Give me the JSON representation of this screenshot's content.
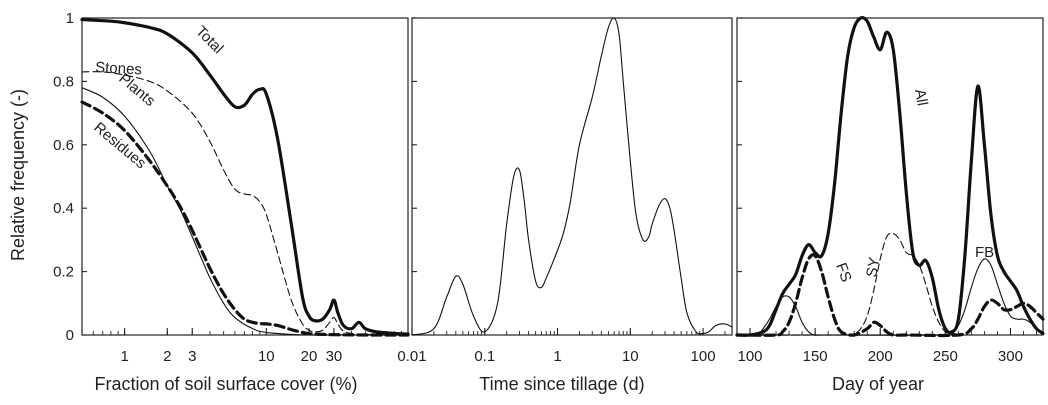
{
  "chart_data": [
    {
      "type": "line",
      "xscale": "log",
      "xlim": [
        0.5,
        100
      ],
      "ylim": [
        0,
        1
      ],
      "xlabel": "Fraction of soil surface cover (%)",
      "ylabel": "Relative frequency (-)",
      "xticks": [
        1,
        2,
        3,
        10,
        20,
        30
      ],
      "xtick_labels": [
        "1",
        "2",
        "3",
        "10",
        "20",
        "30"
      ],
      "yticks": [
        0,
        0.2,
        0.4,
        0.6,
        0.8,
        1
      ],
      "ytick_labels": [
        "0",
        "0.2",
        "0.4",
        "0.6",
        "0.8",
        "1"
      ],
      "series": [
        {
          "name": "Total",
          "style": "thick-solid",
          "x": [
            0.5,
            0.8,
            1,
            1.5,
            2,
            3,
            4,
            5,
            6,
            7,
            8,
            9,
            10,
            12,
            15,
            18,
            20,
            22,
            25,
            28,
            30,
            32,
            35,
            40,
            45,
            50,
            60,
            80,
            100
          ],
          "y": [
            0.995,
            0.99,
            0.985,
            0.97,
            0.95,
            0.89,
            0.82,
            0.76,
            0.72,
            0.725,
            0.76,
            0.775,
            0.76,
            0.62,
            0.35,
            0.12,
            0.06,
            0.045,
            0.05,
            0.08,
            0.11,
            0.07,
            0.03,
            0.02,
            0.04,
            0.02,
            0.01,
            0.005,
            0.003
          ]
        },
        {
          "name": "Stones",
          "style": "thin-dashed",
          "x": [
            0.5,
            0.7,
            1,
            1.5,
            2,
            3,
            4,
            5,
            6,
            7,
            8,
            9,
            10,
            12,
            15,
            18,
            20,
            22,
            25,
            28,
            30,
            32,
            35,
            40,
            50,
            100
          ],
          "y": [
            0.83,
            0.83,
            0.82,
            0.8,
            0.77,
            0.7,
            0.61,
            0.52,
            0.46,
            0.445,
            0.44,
            0.42,
            0.38,
            0.26,
            0.11,
            0.035,
            0.015,
            0.01,
            0.015,
            0.04,
            0.055,
            0.035,
            0.012,
            0.005,
            0.002,
            0.0
          ]
        },
        {
          "name": "Plants",
          "style": "thin-solid",
          "x": [
            0.5,
            0.7,
            1,
            1.5,
            2,
            2.5,
            3,
            4,
            5,
            6,
            8,
            10,
            15,
            20,
            30,
            50,
            100
          ],
          "y": [
            0.78,
            0.75,
            0.69,
            0.58,
            0.47,
            0.39,
            0.31,
            0.18,
            0.1,
            0.055,
            0.02,
            0.008,
            0.002,
            0.0,
            0.0,
            0.0,
            0.0
          ]
        },
        {
          "name": "Residues",
          "style": "thick-dashed",
          "x": [
            0.5,
            0.7,
            1,
            1.5,
            2,
            2.5,
            3,
            4,
            5,
            6,
            7,
            8,
            9,
            10,
            12,
            15,
            18,
            20,
            22,
            25,
            30,
            50,
            100
          ],
          "y": [
            0.735,
            0.7,
            0.645,
            0.55,
            0.47,
            0.4,
            0.33,
            0.21,
            0.13,
            0.08,
            0.05,
            0.04,
            0.036,
            0.035,
            0.03,
            0.017,
            0.008,
            0.004,
            0.003,
            0.002,
            0.001,
            0.0,
            0.0
          ]
        }
      ],
      "curve_labels": [
        "Total",
        "Stones",
        "Plants",
        "Residues"
      ]
    },
    {
      "type": "line",
      "xscale": "log",
      "xlim": [
        0.01,
        250
      ],
      "ylim": [
        0,
        1
      ],
      "xlabel": "Time since tillage (d)",
      "xticks": [
        0.01,
        0.1,
        1,
        10,
        100
      ],
      "xtick_labels": [
        "0.01",
        "0.1",
        "1",
        "10",
        "100"
      ],
      "series": [
        {
          "name": "",
          "style": "thin-solid",
          "x": [
            0.01,
            0.02,
            0.03,
            0.04,
            0.05,
            0.07,
            0.1,
            0.15,
            0.2,
            0.25,
            0.3,
            0.35,
            0.4,
            0.5,
            0.6,
            0.7,
            0.9,
            1.2,
            1.5,
            2,
            3,
            4,
            5,
            6,
            7,
            8,
            10,
            12,
            15,
            18,
            20,
            25,
            30,
            35,
            40,
            50,
            60,
            80,
            100,
            120,
            150,
            200,
            250
          ],
          "y": [
            0.0,
            0.02,
            0.12,
            0.185,
            0.16,
            0.06,
            0.01,
            0.1,
            0.35,
            0.5,
            0.52,
            0.42,
            0.3,
            0.17,
            0.15,
            0.18,
            0.24,
            0.32,
            0.42,
            0.6,
            0.75,
            0.88,
            0.97,
            1.0,
            0.95,
            0.8,
            0.55,
            0.38,
            0.3,
            0.31,
            0.35,
            0.41,
            0.43,
            0.4,
            0.33,
            0.18,
            0.07,
            0.01,
            0.005,
            0.01,
            0.03,
            0.035,
            0.025
          ]
        }
      ]
    },
    {
      "type": "line",
      "xlim": [
        90,
        325
      ],
      "ylim": [
        0,
        1
      ],
      "xlabel": "Day of year",
      "xticks": [
        100,
        150,
        200,
        250,
        300
      ],
      "xtick_labels": [
        "100",
        "150",
        "200",
        "250",
        "300"
      ],
      "series": [
        {
          "name": "All",
          "style": "thick-solid",
          "x": [
            90,
            100,
            110,
            115,
            120,
            125,
            130,
            135,
            140,
            145,
            150,
            155,
            160,
            165,
            170,
            175,
            180,
            185,
            190,
            195,
            200,
            205,
            210,
            215,
            220,
            225,
            230,
            235,
            240,
            245,
            250,
            255,
            260,
            265,
            270,
            275,
            280,
            285,
            290,
            295,
            300,
            305,
            310,
            315,
            320,
            325
          ],
          "y": [
            0.0,
            0.0,
            0.01,
            0.03,
            0.08,
            0.13,
            0.16,
            0.19,
            0.25,
            0.285,
            0.26,
            0.25,
            0.32,
            0.48,
            0.7,
            0.88,
            0.97,
            1.0,
            0.99,
            0.94,
            0.9,
            0.955,
            0.9,
            0.7,
            0.45,
            0.26,
            0.22,
            0.235,
            0.18,
            0.08,
            0.02,
            0.01,
            0.05,
            0.25,
            0.55,
            0.785,
            0.6,
            0.38,
            0.25,
            0.2,
            0.17,
            0.14,
            0.09,
            0.05,
            0.02,
            0.005
          ]
        },
        {
          "name": "FS",
          "style": "thick-dashed",
          "x": [
            90,
            120,
            125,
            130,
            135,
            140,
            145,
            150,
            155,
            160,
            165,
            170,
            180,
            190,
            195,
            200,
            205,
            210,
            220,
            260,
            270,
            275,
            280,
            285,
            290,
            295,
            300,
            305,
            310,
            315,
            320,
            325
          ],
          "y": [
            0.0,
            0.0,
            0.01,
            0.04,
            0.1,
            0.18,
            0.24,
            0.25,
            0.2,
            0.12,
            0.05,
            0.01,
            0.0,
            0.02,
            0.04,
            0.03,
            0.01,
            0.0,
            0.0,
            0.0,
            0.02,
            0.05,
            0.09,
            0.11,
            0.1,
            0.08,
            0.08,
            0.09,
            0.1,
            0.09,
            0.07,
            0.05
          ]
        },
        {
          "name": "SY",
          "style": "thin-dashed",
          "x": [
            90,
            170,
            180,
            185,
            190,
            195,
            200,
            205,
            210,
            215,
            220,
            225,
            230,
            235,
            240,
            245,
            250,
            255,
            260
          ],
          "y": [
            0.0,
            0.0,
            0.005,
            0.02,
            0.06,
            0.14,
            0.24,
            0.31,
            0.32,
            0.3,
            0.26,
            0.25,
            0.22,
            0.16,
            0.09,
            0.04,
            0.01,
            0.005,
            0.0
          ]
        },
        {
          "name": "FB",
          "style": "thin-solid",
          "x": [
            90,
            105,
            110,
            115,
            120,
            125,
            130,
            135,
            140,
            145,
            150,
            160,
            250,
            255,
            260,
            265,
            270,
            275,
            280,
            285,
            290,
            295,
            300,
            305,
            310,
            315,
            320,
            325
          ],
          "y": [
            0.0,
            0.0,
            0.02,
            0.05,
            0.09,
            0.12,
            0.12,
            0.09,
            0.04,
            0.01,
            0.0,
            0.0,
            0.0,
            0.01,
            0.03,
            0.08,
            0.15,
            0.21,
            0.24,
            0.22,
            0.16,
            0.1,
            0.06,
            0.05,
            0.05,
            0.04,
            0.02,
            0.01
          ]
        }
      ],
      "curve_labels": [
        "All",
        "FS",
        "SY",
        "FB"
      ]
    }
  ]
}
